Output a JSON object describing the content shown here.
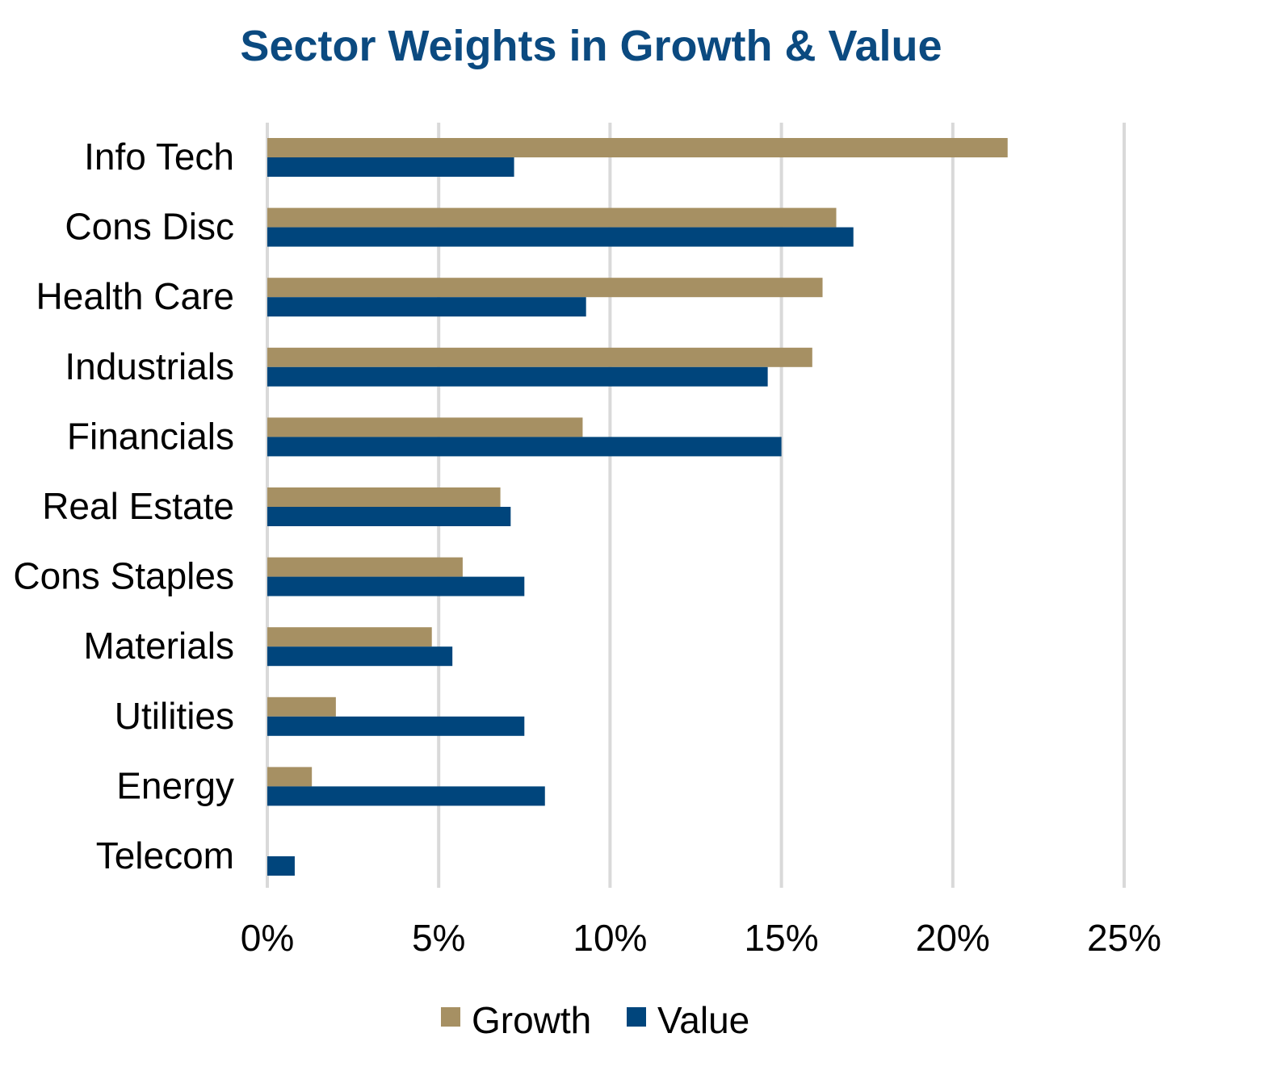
{
  "chart_data": {
    "type": "bar",
    "orientation": "horizontal",
    "title": "Sector Weights in Growth & Value",
    "xlabel": "",
    "ylabel": "",
    "categories": [
      "Info Tech",
      "Cons Disc",
      "Health Care",
      "Industrials",
      "Financials",
      "Real Estate",
      "Cons Staples",
      "Materials",
      "Utilities",
      "Energy",
      "Telecom"
    ],
    "series": [
      {
        "name": "Growth",
        "color": "#a69063",
        "values": [
          21.6,
          16.6,
          16.2,
          15.9,
          9.2,
          6.8,
          5.7,
          4.8,
          2.0,
          1.3,
          0.0
        ]
      },
      {
        "name": "Value",
        "color": "#00457c",
        "values": [
          7.2,
          17.1,
          9.3,
          14.6,
          15.0,
          7.1,
          7.5,
          5.4,
          7.5,
          8.1,
          0.8
        ]
      }
    ],
    "xlim": [
      0,
      25
    ],
    "xticks": [
      0,
      5,
      10,
      15,
      20,
      25
    ],
    "xtick_labels": [
      "0%",
      "5%",
      "10%",
      "15%",
      "20%",
      "25%"
    ],
    "grid": true,
    "gridline_color": "#d9d9d9",
    "legend": [
      "Growth",
      "Value"
    ],
    "legend_position": "bottom"
  }
}
